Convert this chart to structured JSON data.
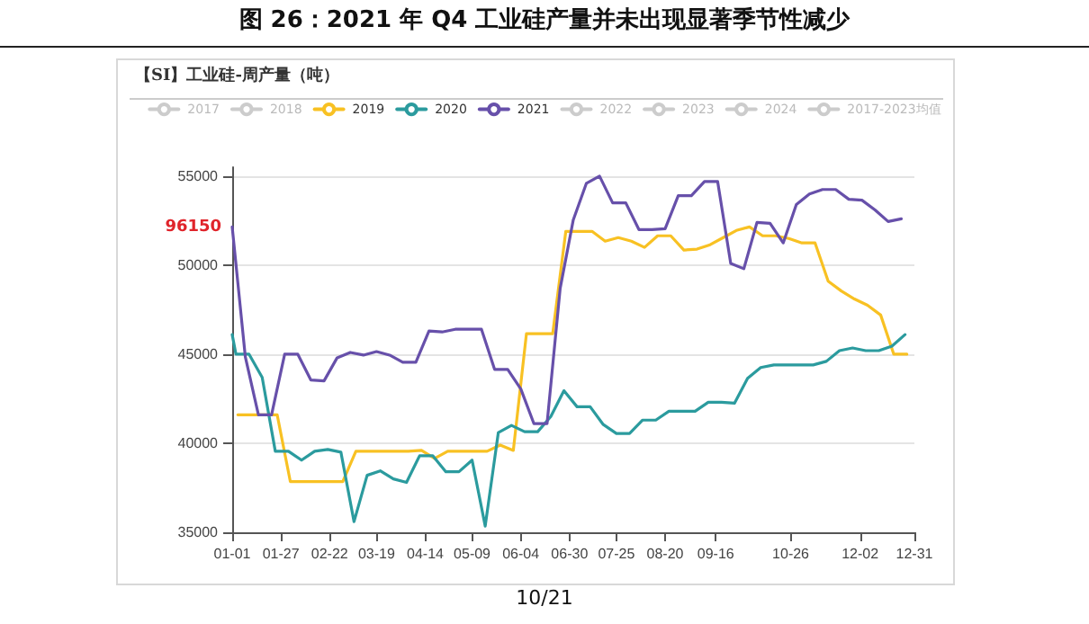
{
  "chart_data": {
    "type": "line",
    "title": "图 26：2021 年 Q4 工业硅产量并未出现显著季节性减少",
    "subtitle": "【SI】工业硅-周产量（吨）",
    "annotations": [
      "96150",
      "10/21"
    ],
    "legend": "top",
    "grid": "y",
    "marker": "none",
    "line_style": "solid",
    "xlim": [
      "--01-01",
      "--12-31"
    ],
    "xticks": [
      {
        "value": "--01-01",
        "label": "01-01"
      },
      {
        "value": "--01-27",
        "label": "01-27"
      },
      {
        "value": "--02-22",
        "label": "02-22"
      },
      {
        "value": "--03-19",
        "label": "03-19"
      },
      {
        "value": "--04-14",
        "label": "04-14"
      },
      {
        "value": "--05-09",
        "label": "05-09"
      },
      {
        "value": "--06-04",
        "label": "06-04"
      },
      {
        "value": "--06-30",
        "label": "06-30"
      },
      {
        "value": "--07-25",
        "label": "07-25"
      },
      {
        "value": "--08-20",
        "label": "08-20"
      },
      {
        "value": "--09-16",
        "label": "09-16"
      },
      {
        "value": "--10-26",
        "label": "10-26"
      },
      {
        "value": "--12-02",
        "label": "12-02"
      },
      {
        "value": "--12-31",
        "label": "12-31"
      }
    ],
    "ylim": [
      35000,
      55500
    ],
    "yticks": [
      35000,
      40000,
      45000,
      50000,
      55000
    ],
    "series": [
      {
        "name": "2017",
        "color": "#cccccc"
      },
      {
        "name": "2018",
        "color": "#cccccc"
      },
      {
        "name": "2019",
        "color": "#f8c123",
        "x": [
          "--01-04",
          "--01-11",
          "--01-18",
          "--01-25",
          "--02-01",
          "--02-08",
          "--02-15",
          "--02-22",
          "--03-01",
          "--03-08",
          "--03-15",
          "--03-22",
          "--03-29",
          "--04-05",
          "--04-12",
          "--04-19",
          "--04-26",
          "--05-03",
          "--05-10",
          "--05-17",
          "--05-24",
          "--05-31",
          "--06-07",
          "--06-14",
          "--06-21",
          "--06-28",
          "--07-05",
          "--07-12",
          "--07-19",
          "--07-26",
          "--08-02",
          "--08-09",
          "--08-16",
          "--08-23",
          "--08-30",
          "--09-06",
          "--09-13",
          "--09-20",
          "--09-27",
          "--10-04",
          "--10-11",
          "--10-18",
          "--10-25",
          "--11-01",
          "--11-08",
          "--11-15",
          "--11-22",
          "--11-29",
          "--12-06",
          "--12-13",
          "--12-20",
          "--12-27"
        ],
        "values": [
          41600,
          41600,
          41600,
          41600,
          37850,
          37850,
          37850,
          37850,
          37850,
          39550,
          39550,
          39550,
          39550,
          39550,
          39600,
          39150,
          39550,
          39550,
          39550,
          39550,
          39900,
          39600,
          46150,
          46150,
          46150,
          51900,
          51900,
          51900,
          51350,
          51550,
          51350,
          51000,
          51650,
          51650,
          50850,
          50900,
          51150,
          51550,
          51950,
          52150,
          51650,
          51650,
          51500,
          51250,
          51250,
          49100,
          48550,
          48100,
          47750,
          47200,
          45000,
          45000
        ]
      },
      {
        "name": "2020",
        "color": "#2b9b9e",
        "x": [
          "--01-01",
          "--01-03",
          "--01-10",
          "--01-17",
          "--01-24",
          "--01-31",
          "--02-07",
          "--02-14",
          "--02-21",
          "--02-28",
          "--03-07",
          "--03-14",
          "--03-21",
          "--03-28",
          "--04-04",
          "--04-11",
          "--04-18",
          "--04-25",
          "--05-02",
          "--05-09",
          "--05-16",
          "--05-23",
          "--05-30",
          "--06-06",
          "--06-13",
          "--06-20",
          "--06-27",
          "--07-04",
          "--07-11",
          "--07-18",
          "--07-25",
          "--08-01",
          "--08-08",
          "--08-15",
          "--08-22",
          "--08-29",
          "--09-05",
          "--09-12",
          "--09-19",
          "--09-26",
          "--10-03",
          "--10-10",
          "--10-17",
          "--10-24",
          "--10-31",
          "--11-07",
          "--11-14",
          "--11-21",
          "--11-28",
          "--12-05",
          "--12-12",
          "--12-19",
          "--12-26"
        ],
        "values": [
          46100,
          45000,
          45000,
          43700,
          39550,
          39550,
          39050,
          39550,
          39650,
          39500,
          35600,
          38200,
          38450,
          38000,
          37800,
          39300,
          39300,
          38400,
          38400,
          39050,
          35350,
          40600,
          41000,
          40650,
          40650,
          41500,
          42950,
          42050,
          42050,
          41050,
          40550,
          40550,
          41300,
          41300,
          41800,
          41800,
          41800,
          42300,
          42300,
          42250,
          43650,
          44250,
          44400,
          44400,
          44400,
          44400,
          44600,
          45200,
          45350,
          45200,
          45200,
          45450,
          46100
        ]
      },
      {
        "name": "2021",
        "color": "#6750aa",
        "x": [
          "--01-01",
          "--01-08",
          "--01-15",
          "--01-22",
          "--01-29",
          "--02-05",
          "--02-12",
          "--02-19",
          "--02-26",
          "--03-05",
          "--03-12",
          "--03-19",
          "--03-26",
          "--04-02",
          "--04-09",
          "--04-16",
          "--04-23",
          "--04-30",
          "--05-07",
          "--05-14",
          "--05-21",
          "--05-28",
          "--06-04",
          "--06-11",
          "--06-18",
          "--06-25",
          "--07-02",
          "--07-09",
          "--07-16",
          "--07-23",
          "--07-30",
          "--08-06",
          "--08-13",
          "--08-20",
          "--08-27",
          "--09-03",
          "--09-10",
          "--09-17",
          "--09-24",
          "--10-01",
          "--10-08",
          "--10-15",
          "--10-22",
          "--10-29",
          "--11-05",
          "--11-12",
          "--11-19",
          "--11-26",
          "--12-03",
          "--12-10",
          "--12-17",
          "--12-24"
        ],
        "values": [
          52150,
          44850,
          41600,
          41600,
          45000,
          45000,
          43550,
          43500,
          44800,
          45100,
          44950,
          45150,
          44950,
          44550,
          44550,
          46300,
          46250,
          46400,
          46400,
          46400,
          44150,
          44150,
          43050,
          41100,
          41100,
          48700,
          52550,
          54600,
          55000,
          53500,
          53500,
          52000,
          52000,
          52050,
          53900,
          53900,
          54700,
          54700,
          50100,
          49800,
          52400,
          52350,
          51250,
          53400,
          54000,
          54250,
          54250,
          53700,
          53650,
          53100,
          52450,
          52600
        ]
      },
      {
        "name": "2022",
        "color": "#cccccc"
      },
      {
        "name": "2023",
        "color": "#cccccc"
      },
      {
        "name": "2024",
        "color": "#cccccc"
      },
      {
        "name": "2017-2023均值",
        "color": "#cccccc"
      }
    ]
  }
}
